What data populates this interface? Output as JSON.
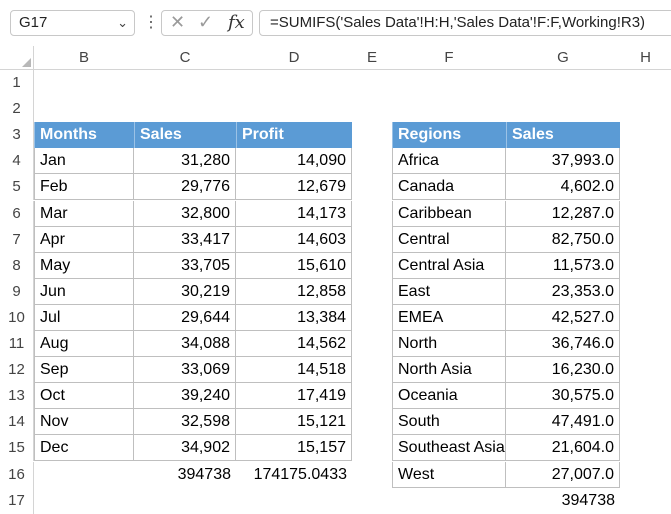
{
  "formula_bar": {
    "name_box": "G17",
    "formula": "=SUMIFS('Sales Data'!H:H,'Sales Data'!F:F,Working!R3)"
  },
  "columns": [
    "B",
    "C",
    "D",
    "E",
    "F",
    "G",
    "H"
  ],
  "rows": [
    "1",
    "2",
    "3",
    "4",
    "5",
    "6",
    "7",
    "8",
    "9",
    "10",
    "11",
    "12",
    "13",
    "14",
    "15",
    "16",
    "17"
  ],
  "months_table": {
    "headers": [
      "Months",
      "Sales",
      "Profit"
    ],
    "rows": [
      [
        "Jan",
        "31,280",
        "14,090"
      ],
      [
        "Feb",
        "29,776",
        "12,679"
      ],
      [
        "Mar",
        "32,800",
        "14,173"
      ],
      [
        "Apr",
        "33,417",
        "14,603"
      ],
      [
        "May",
        "33,705",
        "15,610"
      ],
      [
        "Jun",
        "30,219",
        "12,858"
      ],
      [
        "Jul",
        "29,644",
        "13,384"
      ],
      [
        "Aug",
        "34,088",
        "14,562"
      ],
      [
        "Sep",
        "33,069",
        "14,518"
      ],
      [
        "Oct",
        "39,240",
        "17,419"
      ],
      [
        "Nov",
        "32,598",
        "15,121"
      ],
      [
        "Dec",
        "34,902",
        "15,157"
      ]
    ],
    "totals": [
      "394738",
      "174175.0433"
    ]
  },
  "regions_table": {
    "headers": [
      "Regions",
      "Sales"
    ],
    "rows": [
      [
        "Africa",
        "37,993.0"
      ],
      [
        "Canada",
        "4,602.0"
      ],
      [
        "Caribbean",
        "12,287.0"
      ],
      [
        "Central",
        "82,750.0"
      ],
      [
        "Central Asia",
        "11,573.0"
      ],
      [
        "East",
        "23,353.0"
      ],
      [
        "EMEA",
        "42,527.0"
      ],
      [
        "North",
        "36,746.0"
      ],
      [
        "North Asia",
        "16,230.0"
      ],
      [
        "Oceania",
        "30,575.0"
      ],
      [
        "South",
        "47,491.0"
      ],
      [
        "Southeast Asia",
        "21,604.0"
      ],
      [
        "West",
        "27,007.0"
      ]
    ],
    "total": "394738"
  },
  "colors": {
    "header_fill": "#5b9bd5",
    "header_text": "#ffffff",
    "gridline": "#bfbfbf"
  }
}
